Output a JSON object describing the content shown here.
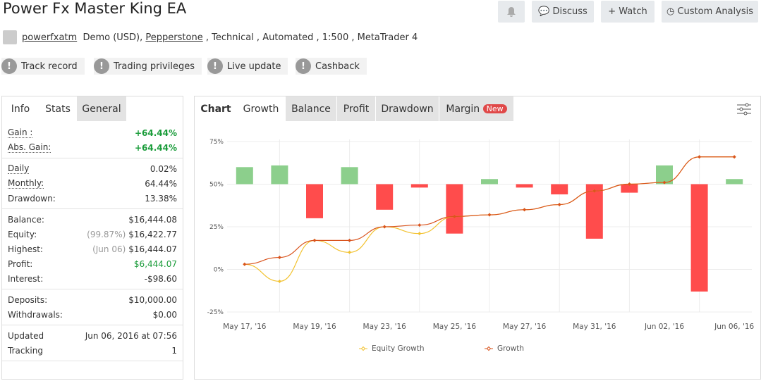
{
  "header": {
    "title": "Power Fx Master King EA",
    "buttons": [
      "Discuss",
      "Watch",
      "Custom Analysis"
    ]
  },
  "account": {
    "user": "powerfxatm",
    "type": "Demo (USD),",
    "broker": "Pepperstone",
    "details": ", Technical , Automated , 1:500 , MetaTrader 4"
  },
  "badges": [
    "Track record",
    "Trading privileges",
    "Live update",
    "Cashback"
  ],
  "stats": {
    "tabs": [
      "Info",
      "Stats",
      "General"
    ],
    "groups": [
      [
        {
          "label": "Gain :",
          "value": "+64.44%",
          "color": "#1a9c3a",
          "underline": true
        },
        {
          "label": "Abs. Gain:",
          "value": "+64.44%",
          "color": "#1a9c3a",
          "underline": true
        }
      ],
      [
        {
          "label": "Daily",
          "value": "0.02%",
          "underline": true
        },
        {
          "label": "Monthly:",
          "value": "64.44%",
          "underline": true
        },
        {
          "label": "Drawdown:",
          "value": "13.38%"
        }
      ],
      [
        {
          "label": "Balance:",
          "value": "$16,444.08"
        },
        {
          "label": "Equity:",
          "prefix": "(99.87%)",
          "value": "$16,422.77"
        },
        {
          "label": "Highest:",
          "prefix": "(Jun 06)",
          "value": "$16,444.07"
        },
        {
          "label": "Profit:",
          "value": "$6,444.07",
          "color": "#1a9c3a"
        },
        {
          "label": "Interest:",
          "value": "-$98.60"
        }
      ],
      [
        {
          "label": "Deposits:",
          "value": "$10,000.00"
        },
        {
          "label": "Withdrawals:",
          "value": "$0.00"
        }
      ],
      [
        {
          "label": "Updated",
          "value": "Jun 06, 2016 at 07:56"
        },
        {
          "label": "Tracking",
          "value": "1"
        }
      ]
    ]
  },
  "chart_tabs": {
    "label": "Chart",
    "tabs": [
      "Growth",
      "Balance",
      "Profit",
      "Drawdown",
      "Margin"
    ],
    "new_badge": "New"
  },
  "chart_data": {
    "type": "line",
    "categories": [
      "May 17, '16",
      null,
      "May 19, '16",
      null,
      "May 23, '16",
      null,
      "May 25, '16",
      null,
      "May 27, '16",
      null,
      "May 31, '16",
      null,
      "Jun 02, '16",
      null,
      "Jun 06, '16"
    ],
    "series": [
      {
        "name": "Equity Growth",
        "color": "#f2c230",
        "values": [
          3,
          -7,
          17,
          10,
          25,
          21,
          31,
          32,
          35,
          38,
          46,
          50,
          51,
          66,
          66
        ]
      },
      {
        "name": "Growth",
        "color": "#d9541e",
        "values": [
          3,
          7,
          17,
          17,
          25,
          26,
          31,
          32,
          35,
          38,
          46,
          50,
          51,
          66,
          66
        ]
      }
    ],
    "bars": {
      "baseline": 50,
      "up_color": "#8ccf8c",
      "down_color": "#ff4c4c",
      "values": [
        60,
        61,
        30,
        60,
        35,
        48,
        21,
        53,
        48,
        44,
        18,
        45,
        61,
        -13,
        53
      ]
    },
    "ylim": [
      -25,
      75
    ],
    "yticks": [
      {
        "value": 75,
        "label": "75%"
      },
      {
        "value": 50,
        "label": "50%"
      },
      {
        "value": 25,
        "label": "25%"
      },
      {
        "value": 0,
        "label": "0%"
      },
      {
        "value": -25,
        "label": "-25%"
      }
    ],
    "grid": true
  }
}
